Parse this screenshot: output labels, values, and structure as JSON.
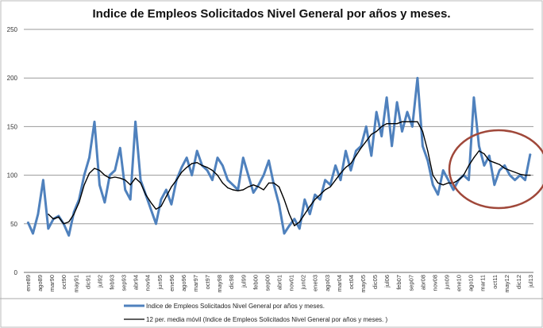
{
  "chart_data": {
    "type": "line",
    "title": "Indice de Empleos Solicitados Nivel General por años y meses.",
    "xlabel": "",
    "ylabel": "",
    "ylim": [
      0,
      250
    ],
    "yticks": [
      0,
      50,
      100,
      150,
      200,
      250
    ],
    "grid": true,
    "legend_position": "bottom",
    "xtick_labels": [
      "ene89",
      "ago89",
      "mar90",
      "oct90",
      "may91",
      "dic91",
      "jul92",
      "feb93",
      "sep93",
      "abr94",
      "nov94",
      "jun95",
      "ene96",
      "ago96",
      "mar97",
      "oct97",
      "may98",
      "dic98",
      "jul99",
      "feb00",
      "sep00",
      "abr01",
      "nov01",
      "jun02",
      "ene03",
      "ago03",
      "mar04",
      "oct04",
      "may05",
      "dic05",
      "jul06",
      "feb07",
      "sep07",
      "abr08",
      "nov08",
      "jun09",
      "ene10",
      "ago10",
      "mar11",
      "oct11",
      "may12",
      "dic12",
      "jul13"
    ],
    "xtick_dates": [
      "1989-01",
      "1989-08",
      "1990-03",
      "1990-10",
      "1991-05",
      "1991-12",
      "1992-07",
      "1993-02",
      "1993-09",
      "1994-04",
      "1994-11",
      "1995-06",
      "1996-01",
      "1996-08",
      "1997-03",
      "1997-10",
      "1998-05",
      "1998-12",
      "1999-07",
      "2000-02",
      "2000-09",
      "2001-04",
      "2001-11",
      "2002-06",
      "2003-01",
      "2003-08",
      "2004-03",
      "2004-10",
      "2005-05",
      "2005-12",
      "2006-07",
      "2007-02",
      "2007-09",
      "2008-04",
      "2008-11",
      "2009-06",
      "2010-01",
      "2010-08",
      "2011-03",
      "2011-10",
      "2012-05",
      "2012-12",
      "2013-07"
    ],
    "x_range": [
      "1989-01",
      "2013-07"
    ],
    "series": [
      {
        "name": "Indice de Empleos Solicitados  Nivel General por años y meses.",
        "color": "#4f81bd",
        "x": [
          "1989-01",
          "1989-04",
          "1989-07",
          "1989-10",
          "1990-01",
          "1990-04",
          "1990-07",
          "1990-10",
          "1991-01",
          "1991-04",
          "1991-07",
          "1991-10",
          "1992-01",
          "1992-04",
          "1992-07",
          "1992-10",
          "1993-01",
          "1993-04",
          "1993-07",
          "1993-10",
          "1994-01",
          "1994-04",
          "1994-07",
          "1994-10",
          "1995-01",
          "1995-04",
          "1995-07",
          "1995-10",
          "1996-01",
          "1996-04",
          "1996-07",
          "1996-10",
          "1997-01",
          "1997-04",
          "1997-07",
          "1997-10",
          "1998-01",
          "1998-04",
          "1998-07",
          "1998-10",
          "1999-01",
          "1999-04",
          "1999-07",
          "1999-10",
          "2000-01",
          "2000-04",
          "2000-07",
          "2000-10",
          "2001-01",
          "2001-04",
          "2001-07",
          "2001-10",
          "2002-01",
          "2002-04",
          "2002-07",
          "2002-10",
          "2003-01",
          "2003-04",
          "2003-07",
          "2003-10",
          "2004-01",
          "2004-04",
          "2004-07",
          "2004-10",
          "2005-01",
          "2005-04",
          "2005-07",
          "2005-10",
          "2006-01",
          "2006-04",
          "2006-07",
          "2006-10",
          "2007-01",
          "2007-04",
          "2007-07",
          "2007-10",
          "2008-01",
          "2008-04",
          "2008-07",
          "2008-10",
          "2009-01",
          "2009-04",
          "2009-07",
          "2009-10",
          "2010-01",
          "2010-04",
          "2010-07",
          "2010-10",
          "2011-01",
          "2011-04",
          "2011-07",
          "2011-10",
          "2012-01",
          "2012-04",
          "2012-07",
          "2012-10",
          "2013-01",
          "2013-04",
          "2013-07"
        ],
        "values": [
          52,
          40,
          60,
          95,
          45,
          55,
          58,
          50,
          38,
          62,
          75,
          100,
          118,
          155,
          90,
          72,
          100,
          105,
          128,
          85,
          75,
          155,
          95,
          80,
          65,
          50,
          75,
          85,
          70,
          95,
          108,
          118,
          100,
          125,
          110,
          105,
          95,
          118,
          110,
          95,
          90,
          85,
          118,
          100,
          82,
          90,
          100,
          115,
          90,
          70,
          40,
          48,
          55,
          45,
          75,
          60,
          80,
          75,
          95,
          90,
          110,
          95,
          125,
          105,
          125,
          130,
          150,
          120,
          165,
          140,
          180,
          130,
          175,
          145,
          165,
          150,
          200,
          130,
          115,
          90,
          80,
          105,
          95,
          85,
          95,
          100,
          95,
          180,
          130,
          110,
          120,
          90,
          105,
          110,
          100,
          95,
          100,
          95,
          122
        ]
      },
      {
        "name": "12 per. media móvil (Indice de Empleos Solicitados  Nivel General por años y meses. )",
        "color": "#000000",
        "x": [
          "1990-01",
          "1990-04",
          "1990-07",
          "1990-10",
          "1991-01",
          "1991-04",
          "1991-07",
          "1991-10",
          "1992-01",
          "1992-04",
          "1992-07",
          "1992-10",
          "1993-01",
          "1993-04",
          "1993-07",
          "1993-10",
          "1994-01",
          "1994-04",
          "1994-07",
          "1994-10",
          "1995-01",
          "1995-04",
          "1995-07",
          "1995-10",
          "1996-01",
          "1996-04",
          "1996-07",
          "1996-10",
          "1997-01",
          "1997-04",
          "1997-07",
          "1997-10",
          "1998-01",
          "1998-04",
          "1998-07",
          "1998-10",
          "1999-01",
          "1999-04",
          "1999-07",
          "1999-10",
          "2000-01",
          "2000-04",
          "2000-07",
          "2000-10",
          "2001-01",
          "2001-04",
          "2001-07",
          "2001-10",
          "2002-01",
          "2002-04",
          "2002-07",
          "2002-10",
          "2003-01",
          "2003-04",
          "2003-07",
          "2003-10",
          "2004-01",
          "2004-04",
          "2004-07",
          "2004-10",
          "2005-01",
          "2005-04",
          "2005-07",
          "2005-10",
          "2006-01",
          "2006-04",
          "2006-07",
          "2006-10",
          "2007-01",
          "2007-04",
          "2007-07",
          "2007-10",
          "2008-01",
          "2008-04",
          "2008-07",
          "2008-10",
          "2009-01",
          "2009-04",
          "2009-07",
          "2009-10",
          "2010-01",
          "2010-04",
          "2010-07",
          "2010-10",
          "2011-01",
          "2011-04",
          "2011-07",
          "2011-10",
          "2012-01",
          "2012-04",
          "2012-07",
          "2012-10",
          "2013-01",
          "2013-04",
          "2013-07"
        ],
        "values": [
          60,
          55,
          57,
          50,
          52,
          60,
          72,
          90,
          102,
          107,
          105,
          100,
          97,
          98,
          97,
          95,
          90,
          97,
          92,
          80,
          72,
          65,
          68,
          78,
          88,
          95,
          103,
          108,
          112,
          113,
          110,
          108,
          105,
          100,
          92,
          87,
          85,
          84,
          85,
          88,
          90,
          88,
          85,
          92,
          92,
          88,
          75,
          60,
          48,
          52,
          60,
          68,
          75,
          80,
          85,
          88,
          95,
          102,
          108,
          112,
          120,
          128,
          135,
          142,
          145,
          150,
          153,
          153,
          153,
          155,
          155,
          155,
          155,
          145,
          125,
          100,
          92,
          90,
          92,
          92,
          95,
          100,
          110,
          118,
          125,
          122,
          115,
          113,
          111,
          107,
          105,
          103,
          101,
          100,
          100
        ]
      }
    ],
    "annotations": [
      {
        "type": "circle",
        "color": "#a0483a",
        "around": [
          "2010-08",
          "2013-07"
        ]
      }
    ]
  }
}
